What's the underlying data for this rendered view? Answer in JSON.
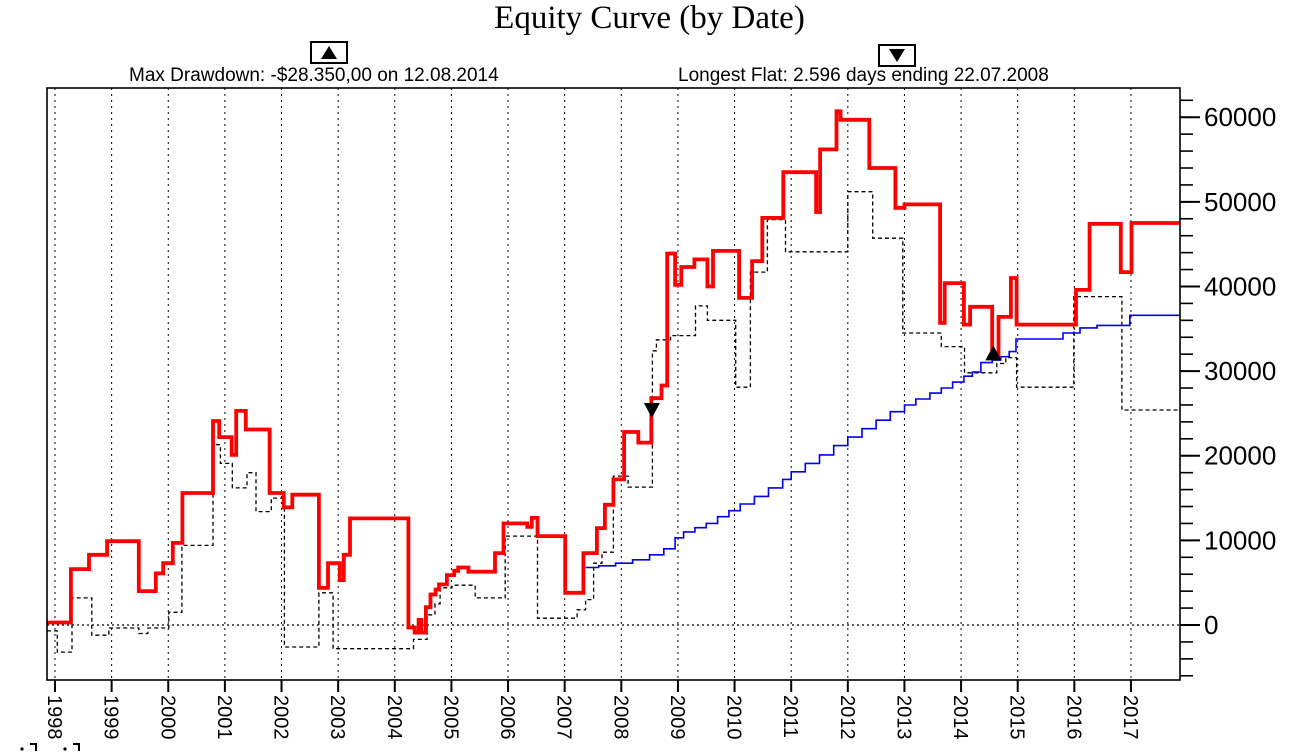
{
  "header": {
    "title": "Equity Curve (by Date)",
    "annotations": [
      {
        "id": "max-drawdown",
        "symbol": "triangle-up",
        "text": "Max Drawdown: -$28.350,00 on 12.08.2014"
      },
      {
        "id": "longest-flat",
        "symbol": "triangle-down",
        "text": "Longest Flat: 2.596 days ending 22.07.2008"
      }
    ]
  },
  "chart_data": {
    "type": "line",
    "title": "Equity Curve (by Date)",
    "xlabel": "",
    "ylabel": "",
    "x_axis": {
      "tick_labels": [
        "1998",
        "1999",
        "2000",
        "2001",
        "2002",
        "2003",
        "2004",
        "2005",
        "2006",
        "2007",
        "2008",
        "2009",
        "2010",
        "2011",
        "2012",
        "2013",
        "2014",
        "2015",
        "2016",
        "2017"
      ],
      "first_tick_year": 1998,
      "range": [
        1997.86,
        2017.87
      ]
    },
    "y_axis": {
      "tick_labels": [
        "0",
        "10000",
        "20000",
        "30000",
        "40000",
        "50000",
        "60000"
      ],
      "major_tick_step": 10000,
      "minor_tick_step": 2000,
      "minor_tick_range": [
        -6000,
        62000
      ],
      "range": [
        -6500,
        63500
      ]
    },
    "grid": {
      "vertical_year_lines": true,
      "zero_line": true,
      "legend_position": "none"
    },
    "colors": {
      "main": "#ff0000",
      "dashed": "#000000",
      "benchmark": "#0000ee",
      "axis": "#000000",
      "background": "#ffffff"
    },
    "series": [
      {
        "name": "equity-dashed",
        "color": "#000000",
        "style": "dashed",
        "width": 1.3,
        "points": [
          [
            1997.86,
            -700
          ],
          [
            1998.04,
            -3200
          ],
          [
            1998.3,
            3200
          ],
          [
            1998.65,
            -1200
          ],
          [
            1998.95,
            -350
          ],
          [
            1999.48,
            -1000
          ],
          [
            1999.64,
            -350
          ],
          [
            2000.01,
            1500
          ],
          [
            2000.24,
            9400
          ],
          [
            2000.79,
            21300
          ],
          [
            2000.92,
            19100
          ],
          [
            2001.13,
            16200
          ],
          [
            2001.39,
            18000
          ],
          [
            2001.55,
            13400
          ],
          [
            2001.82,
            15000
          ],
          [
            2002.05,
            -2600
          ],
          [
            2002.66,
            3800
          ],
          [
            2002.91,
            -2800
          ],
          [
            2004.33,
            -1700
          ],
          [
            2004.57,
            1200
          ],
          [
            2004.71,
            2500
          ],
          [
            2004.8,
            4400
          ],
          [
            2005.01,
            4700
          ],
          [
            2005.42,
            3200
          ],
          [
            2005.95,
            10500
          ],
          [
            2006.52,
            800
          ],
          [
            2007.22,
            1800
          ],
          [
            2007.37,
            3000
          ],
          [
            2007.51,
            7300
          ],
          [
            2007.66,
            8600
          ],
          [
            2007.86,
            17600
          ],
          [
            2008.12,
            16300
          ],
          [
            2008.55,
            32400
          ],
          [
            2008.62,
            33700
          ],
          [
            2008.87,
            34200
          ],
          [
            2009.31,
            37700
          ],
          [
            2009.52,
            36000
          ],
          [
            2010.02,
            28100
          ],
          [
            2010.28,
            41700
          ],
          [
            2010.58,
            47900
          ],
          [
            2010.9,
            44100
          ],
          [
            2012.0,
            51200
          ],
          [
            2012.44,
            45700
          ],
          [
            2012.97,
            34500
          ],
          [
            2013.65,
            32900
          ],
          [
            2014.06,
            29800
          ],
          [
            2014.63,
            30900
          ],
          [
            2014.79,
            31600
          ],
          [
            2014.98,
            28100
          ],
          [
            2015.99,
            38800
          ],
          [
            2016.84,
            25400
          ],
          [
            2017.87,
            25400
          ]
        ]
      },
      {
        "name": "equity-benchmark",
        "color": "#0000ee",
        "style": "solid",
        "width": 1.6,
        "points": [
          [
            2007.37,
            6800
          ],
          [
            2007.6,
            7000
          ],
          [
            2007.9,
            7300
          ],
          [
            2008.2,
            7700
          ],
          [
            2008.5,
            8300
          ],
          [
            2008.75,
            9000
          ],
          [
            2008.95,
            10300
          ],
          [
            2009.1,
            11000
          ],
          [
            2009.3,
            11500
          ],
          [
            2009.5,
            12000
          ],
          [
            2009.7,
            12800
          ],
          [
            2009.9,
            13500
          ],
          [
            2010.1,
            14300
          ],
          [
            2010.35,
            15200
          ],
          [
            2010.6,
            16200
          ],
          [
            2010.85,
            17200
          ],
          [
            2011.0,
            18100
          ],
          [
            2011.25,
            19100
          ],
          [
            2011.5,
            20100
          ],
          [
            2011.75,
            21200
          ],
          [
            2012.0,
            22200
          ],
          [
            2012.25,
            23200
          ],
          [
            2012.5,
            24200
          ],
          [
            2012.75,
            25200
          ],
          [
            2013.0,
            26000
          ],
          [
            2013.2,
            26700
          ],
          [
            2013.45,
            27400
          ],
          [
            2013.65,
            28000
          ],
          [
            2013.85,
            28700
          ],
          [
            2014.05,
            29400
          ],
          [
            2014.2,
            29900
          ],
          [
            2014.35,
            31000
          ],
          [
            2014.55,
            31300
          ],
          [
            2014.7,
            31700
          ],
          [
            2014.85,
            32300
          ],
          [
            2014.97,
            33800
          ],
          [
            2015.8,
            34500
          ],
          [
            2016.1,
            35100
          ],
          [
            2016.4,
            35400
          ],
          [
            2016.98,
            36600
          ],
          [
            2017.87,
            36600
          ]
        ]
      },
      {
        "name": "equity-main",
        "color": "#ff0000",
        "style": "solid",
        "width": 3.8,
        "points": [
          [
            1997.86,
            300
          ],
          [
            1998.28,
            6600
          ],
          [
            1998.6,
            8300
          ],
          [
            1998.92,
            9900
          ],
          [
            1999.48,
            4000
          ],
          [
            1999.78,
            6100
          ],
          [
            1999.91,
            7300
          ],
          [
            2000.08,
            9700
          ],
          [
            2000.25,
            15600
          ],
          [
            2000.79,
            24100
          ],
          [
            2000.9,
            22200
          ],
          [
            2001.12,
            20100
          ],
          [
            2001.2,
            25300
          ],
          [
            2001.37,
            23100
          ],
          [
            2001.79,
            15600
          ],
          [
            2002.04,
            13900
          ],
          [
            2002.19,
            15400
          ],
          [
            2002.66,
            4400
          ],
          [
            2002.82,
            7300
          ],
          [
            2003.03,
            5300
          ],
          [
            2003.1,
            8300
          ],
          [
            2003.21,
            12600
          ],
          [
            2004.24,
            -300
          ],
          [
            2004.35,
            -900
          ],
          [
            2004.42,
            600
          ],
          [
            2004.47,
            -900
          ],
          [
            2004.55,
            2100
          ],
          [
            2004.63,
            3600
          ],
          [
            2004.72,
            4200
          ],
          [
            2004.78,
            4800
          ],
          [
            2004.92,
            5900
          ],
          [
            2005.05,
            6400
          ],
          [
            2005.12,
            6800
          ],
          [
            2005.3,
            6300
          ],
          [
            2005.77,
            8500
          ],
          [
            2005.92,
            12000
          ],
          [
            2006.34,
            11600
          ],
          [
            2006.42,
            12650
          ],
          [
            2006.52,
            10500
          ],
          [
            2007.01,
            3800
          ],
          [
            2007.33,
            8500
          ],
          [
            2007.57,
            11450
          ],
          [
            2007.71,
            14200
          ],
          [
            2007.86,
            17200
          ],
          [
            2008.05,
            22800
          ],
          [
            2008.3,
            21550
          ],
          [
            2008.53,
            26800
          ],
          [
            2008.71,
            28300
          ],
          [
            2008.81,
            43900
          ],
          [
            2008.95,
            40200
          ],
          [
            2009.06,
            42300
          ],
          [
            2009.29,
            43200
          ],
          [
            2009.52,
            40000
          ],
          [
            2009.62,
            44200
          ],
          [
            2010.08,
            38650
          ],
          [
            2010.31,
            43000
          ],
          [
            2010.49,
            48100
          ],
          [
            2010.86,
            53500
          ],
          [
            2011.44,
            48800
          ],
          [
            2011.51,
            56200
          ],
          [
            2011.8,
            60700
          ],
          [
            2011.87,
            59700
          ],
          [
            2012.38,
            54000
          ],
          [
            2012.84,
            49300
          ],
          [
            2013.0,
            49700
          ],
          [
            2013.63,
            35700
          ],
          [
            2013.71,
            40400
          ],
          [
            2014.05,
            35500
          ],
          [
            2014.16,
            37600
          ],
          [
            2014.55,
            31700
          ],
          [
            2014.66,
            36400
          ],
          [
            2014.88,
            41000
          ],
          [
            2014.98,
            35500
          ],
          [
            2016.03,
            39600
          ],
          [
            2016.27,
            47400
          ],
          [
            2016.82,
            41700
          ],
          [
            2017.01,
            47500
          ],
          [
            2017.87,
            47500
          ]
        ]
      }
    ],
    "markers": [
      {
        "shape": "triangle-down",
        "year": 2008.54,
        "value": 25400,
        "label": "longest-flat-end"
      },
      {
        "shape": "triangle-up",
        "year": 2014.57,
        "value": 32100,
        "label": "max-drawdown-point"
      }
    ]
  }
}
